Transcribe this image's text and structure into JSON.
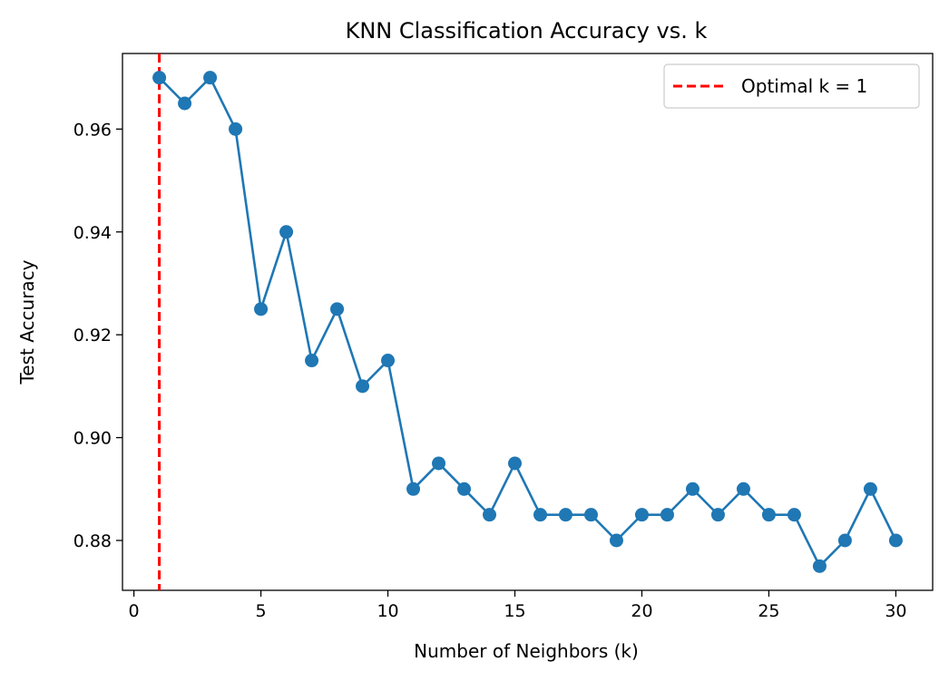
{
  "chart_data": {
    "type": "line",
    "title": "KNN Classification Accuracy vs. k",
    "xlabel": "Number of Neighbors (k)",
    "ylabel": "Test Accuracy",
    "xlim": [
      -0.45,
      31.45
    ],
    "ylim": [
      0.8703,
      0.9747
    ],
    "x_ticks": [
      0,
      5,
      10,
      15,
      20,
      25,
      30
    ],
    "y_ticks": [
      0.88,
      0.9,
      0.92,
      0.94,
      0.96
    ],
    "x_tick_labels": [
      "0",
      "5",
      "10",
      "15",
      "20",
      "25",
      "30"
    ],
    "y_tick_labels": [
      "0.88",
      "0.90",
      "0.92",
      "0.94",
      "0.96"
    ],
    "grid": false,
    "legend_position": "top-right",
    "series": [
      {
        "color": "#1f77b4",
        "marker": "circle",
        "x": [
          1,
          2,
          3,
          4,
          5,
          6,
          7,
          8,
          9,
          10,
          11,
          12,
          13,
          14,
          15,
          16,
          17,
          18,
          19,
          20,
          21,
          22,
          23,
          24,
          25,
          26,
          27,
          28,
          29,
          30
        ],
        "y": [
          0.97,
          0.965,
          0.97,
          0.96,
          0.925,
          0.94,
          0.915,
          0.925,
          0.91,
          0.915,
          0.89,
          0.895,
          0.89,
          0.885,
          0.895,
          0.885,
          0.885,
          0.885,
          0.88,
          0.885,
          0.885,
          0.89,
          0.885,
          0.89,
          0.885,
          0.885,
          0.875,
          0.88,
          0.89,
          0.88
        ]
      }
    ],
    "reference_lines": [
      {
        "orientation": "vertical",
        "x": 1,
        "label": "Optimal k = 1",
        "color": "#ff0000",
        "style": "dashed"
      }
    ]
  }
}
